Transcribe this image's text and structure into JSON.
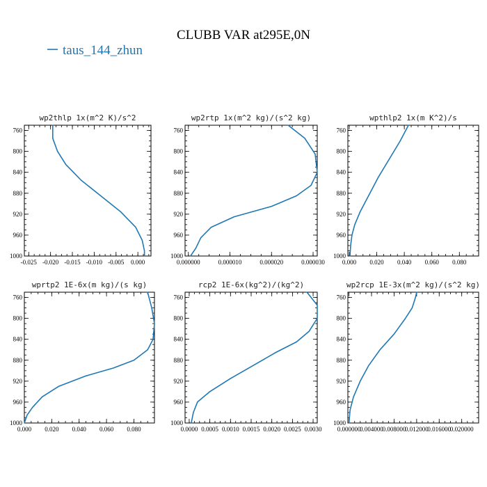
{
  "figure": {
    "title": "CLUBB VAR at295E,0N",
    "legend": [
      {
        "label": "taus_144_zhun",
        "color": "#1f77b4"
      }
    ]
  },
  "chart_data": [
    {
      "type": "line",
      "title": "wp2thlp  1x(m^2 K)/s^2",
      "xlabel": "",
      "ylabel": "",
      "xlim": [
        -0.026,
        0.003
      ],
      "ylim": [
        1000,
        750
      ],
      "xticks": [
        "-0.025",
        "-0.020",
        "-0.015",
        "-0.010",
        "-0.005",
        "0.000"
      ],
      "xtick_values": [
        -0.025,
        -0.02,
        -0.015,
        -0.01,
        -0.005,
        0.0
      ],
      "yticks": [
        "760",
        "800",
        "840",
        "880",
        "920",
        "960",
        "1000"
      ],
      "ytick_values": [
        760,
        800,
        840,
        880,
        920,
        960,
        1000
      ],
      "series": [
        {
          "name": "taus_144_zhun",
          "x": [
            -0.0195,
            -0.0195,
            -0.0184,
            -0.0165,
            -0.013,
            -0.0085,
            -0.004,
            -0.0005,
            0.001,
            0.0015,
            0.0015
          ],
          "y": [
            750,
            775,
            800,
            825,
            855,
            885,
            915,
            945,
            970,
            990,
            1000
          ]
        }
      ]
    },
    {
      "type": "line",
      "title": "wp2rtp  1x(m^2 kg)/(s^2 kg)",
      "xlabel": "",
      "ylabel": "",
      "xlim": [
        -8e-07,
        3.1e-05
      ],
      "ylim": [
        1000,
        750
      ],
      "xticks": [
        "0.000000",
        "0.000010",
        "0.000020",
        "0.000030"
      ],
      "xtick_values": [
        0.0,
        1e-05,
        2e-05,
        3e-05
      ],
      "yticks": [
        "760",
        "800",
        "840",
        "880",
        "920",
        "960",
        "1000"
      ],
      "ytick_values": [
        760,
        800,
        840,
        880,
        920,
        960,
        1000
      ],
      "series": [
        {
          "name": "taus_144_zhun",
          "x": [
            2.4e-05,
            2.8e-05,
            3.05e-05,
            3.1e-05,
            2.95e-05,
            2.6e-05,
            2e-05,
            1.1e-05,
            5.5e-06,
            3e-06,
            1.8e-06,
            5e-07
          ],
          "y": [
            750,
            775,
            805,
            840,
            865,
            885,
            905,
            925,
            945,
            965,
            985,
            1000
          ]
        }
      ]
    },
    {
      "type": "line",
      "title": "wpthlp2  1x(m K^2)/s",
      "xlabel": "",
      "ylabel": "",
      "xlim": [
        -0.001,
        0.094
      ],
      "ylim": [
        1000,
        750
      ],
      "xticks": [
        "0.000",
        "0.020",
        "0.040",
        "0.060",
        "0.080"
      ],
      "xtick_values": [
        0.0,
        0.02,
        0.04,
        0.06,
        0.08
      ],
      "yticks": [
        "760",
        "800",
        "840",
        "880",
        "920",
        "960",
        "1000"
      ],
      "ytick_values": [
        760,
        800,
        840,
        880,
        920,
        960,
        1000
      ],
      "series": [
        {
          "name": "taus_144_zhun",
          "x": [
            0.043,
            0.037,
            0.029,
            0.021,
            0.014,
            0.008,
            0.004,
            0.002,
            0.001,
            0.0005
          ],
          "y": [
            750,
            780,
            815,
            850,
            885,
            915,
            940,
            960,
            980,
            1000
          ]
        }
      ]
    },
    {
      "type": "line",
      "title": "wprtp2  1E-6x(m kg)/(s kg)",
      "xlabel": "",
      "ylabel": "",
      "xlim": [
        0,
        0.095
      ],
      "ylim": [
        1000,
        750
      ],
      "xticks": [
        "0.000",
        "0.020",
        "0.040",
        "0.060",
        "0.080"
      ],
      "xtick_values": [
        0.0,
        0.02,
        0.04,
        0.06,
        0.08
      ],
      "yticks": [
        "760",
        "800",
        "840",
        "880",
        "920",
        "960",
        "1000"
      ],
      "ytick_values": [
        760,
        800,
        840,
        880,
        920,
        960,
        1000
      ],
      "series": [
        {
          "name": "taus_144_zhun",
          "x": [
            0.09,
            0.093,
            0.095,
            0.094,
            0.09,
            0.08,
            0.065,
            0.045,
            0.025,
            0.013,
            0.006,
            0.002,
            0.0
          ],
          "y": [
            750,
            780,
            810,
            840,
            860,
            880,
            895,
            910,
            930,
            950,
            970,
            985,
            1000
          ]
        }
      ]
    },
    {
      "type": "line",
      "title": "rcp2  1E-6x(kg^2)/(kg^2)",
      "xlabel": "",
      "ylabel": "",
      "xlim": [
        -0.0001,
        0.0031
      ],
      "ylim": [
        1000,
        750
      ],
      "xticks": [
        "0.0000",
        "0.0005",
        "0.0010",
        "0.0015",
        "0.0020",
        "0.0025",
        "0.0030"
      ],
      "xtick_values": [
        0.0,
        0.0005,
        0.001,
        0.0015,
        0.002,
        0.0025,
        0.003
      ],
      "yticks": [
        "760",
        "800",
        "840",
        "880",
        "920",
        "960",
        "1000"
      ],
      "ytick_values": [
        760,
        800,
        840,
        880,
        920,
        960,
        1000
      ],
      "series": [
        {
          "name": "taus_144_zhun",
          "x": [
            0.00285,
            0.0031,
            0.0031,
            0.0029,
            0.0026,
            0.0021,
            0.00155,
            0.001,
            0.0005,
            0.0002,
            0.0001,
            5e-05
          ],
          "y": [
            750,
            775,
            800,
            825,
            845,
            865,
            890,
            915,
            940,
            960,
            980,
            1000
          ]
        }
      ]
    },
    {
      "type": "line",
      "title": "wp2rcp  1E-3x(m^2 kg)/(s^2 kg)",
      "xlabel": "",
      "ylabel": "",
      "xlim": [
        -2e-07,
        2.3e-05
      ],
      "ylim": [
        1000,
        750
      ],
      "xticks": [
        "0.000000",
        "0.004000",
        "0.008000",
        "0.012000",
        "0.016000",
        "0.020000"
      ],
      "xtick_values": [
        0.0,
        4e-06,
        8e-06,
        1.2e-05,
        1.6e-05,
        2e-05
      ],
      "yticks": [
        "760",
        "800",
        "840",
        "880",
        "920",
        "960",
        "1000"
      ],
      "ytick_values": [
        760,
        800,
        840,
        880,
        920,
        960,
        1000
      ],
      "series": [
        {
          "name": "taus_144_zhun",
          "x": [
            1.2e-05,
            1.18e-05,
            1.12e-05,
            1e-05,
            8e-06,
            5.5e-06,
            3.5e-06,
            2e-06,
            8e-07,
            2e-07,
            0.0
          ],
          "y": [
            750,
            760,
            780,
            800,
            830,
            860,
            890,
            920,
            950,
            975,
            1000
          ]
        }
      ]
    }
  ]
}
